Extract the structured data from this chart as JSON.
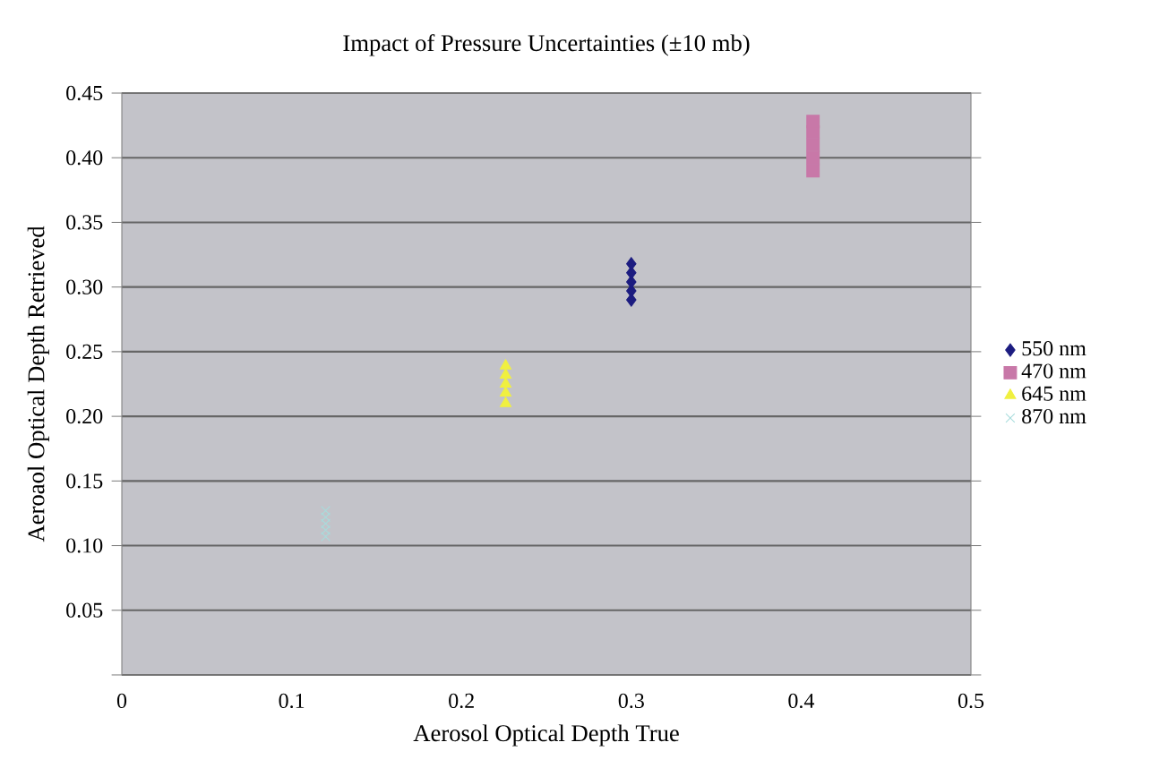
{
  "chart_data": {
    "type": "scatter",
    "title": "Impact of Pressure Uncertainties (±10 mb)",
    "xlabel": "Aerosol Optical Depth True",
    "ylabel": "Aeroaol Optical Depth Retrieved",
    "series": [
      {
        "name": "550 nm",
        "color": "#1c1c80",
        "marker": "diamond",
        "x": [
          0.3,
          0.3,
          0.3,
          0.3,
          0.3
        ],
        "values": [
          0.29,
          0.297,
          0.304,
          0.311,
          0.318
        ]
      },
      {
        "name": "470 nm",
        "color": "#c878a8",
        "marker": "square",
        "x": [
          0.407,
          0.407,
          0.407,
          0.407,
          0.407
        ],
        "values": [
          0.39,
          0.4,
          0.41,
          0.42,
          0.428
        ]
      },
      {
        "name": "645 nm",
        "color": "#f0f040",
        "marker": "triangle",
        "x": [
          0.226,
          0.226,
          0.226,
          0.226,
          0.226
        ],
        "values": [
          0.21,
          0.218,
          0.225,
          0.232,
          0.239
        ]
      },
      {
        "name": "870 nm",
        "color": "#a8dcdc",
        "marker": "cross",
        "x": [
          0.12,
          0.12,
          0.12,
          0.12,
          0.12
        ],
        "values": [
          0.107,
          0.112,
          0.117,
          0.122,
          0.127
        ]
      }
    ],
    "xlim": [
      0,
      0.5
    ],
    "xticks": [
      0,
      0.1,
      0.2,
      0.3,
      0.4,
      0.5
    ],
    "ylim": [
      0,
      0.45
    ],
    "yticks": [
      {
        "value": 0,
        "label": null
      },
      0.05,
      {
        "value": 0.1,
        "label": "0.10"
      },
      0.15,
      {
        "value": 0.2,
        "label": "0.20"
      },
      0.25,
      {
        "value": 0.3,
        "label": "0.30"
      },
      0.35,
      {
        "value": 0.4,
        "label": "0.40"
      },
      0.45
    ],
    "grid": "y",
    "legend": "right"
  }
}
